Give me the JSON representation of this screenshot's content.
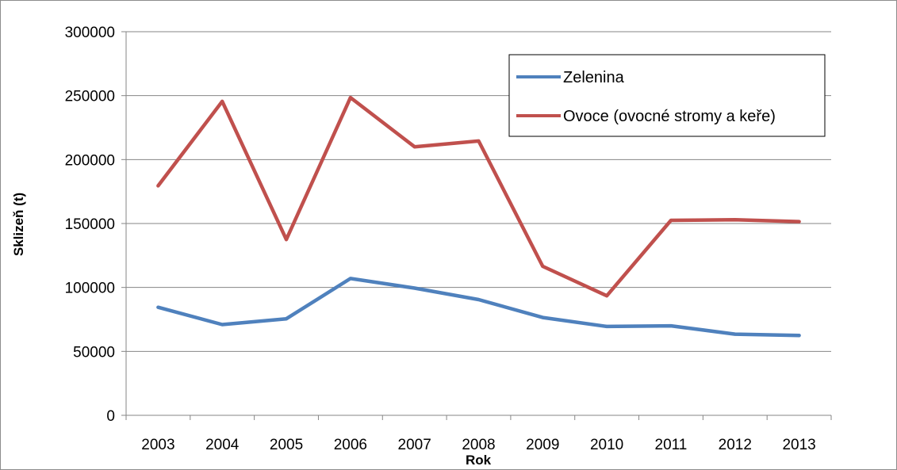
{
  "chart_data": {
    "type": "line",
    "title": "",
    "xlabel": "Rok",
    "ylabel": "Sklizeň (t)",
    "categories": [
      "2003",
      "2004",
      "2005",
      "2006",
      "2007",
      "2008",
      "2009",
      "2010",
      "2011",
      "2012",
      "2013"
    ],
    "ylim": [
      0,
      300000
    ],
    "yticks": [
      "0",
      "50000",
      "100000",
      "150000",
      "200000",
      "250000",
      "300000"
    ],
    "grid": true,
    "legend_position": "top-right",
    "series": [
      {
        "name": "Zelenina",
        "color": "#4f81bd",
        "values": [
          84500,
          71000,
          75500,
          107000,
          99500,
          90500,
          76500,
          69500,
          70000,
          63500,
          62500
        ]
      },
      {
        "name": "Ovoce (ovocné stromy a keře)",
        "color": "#c0504d",
        "values": [
          179500,
          245500,
          137500,
          248500,
          210000,
          214500,
          116500,
          93500,
          152500,
          153000,
          151500
        ]
      }
    ]
  }
}
